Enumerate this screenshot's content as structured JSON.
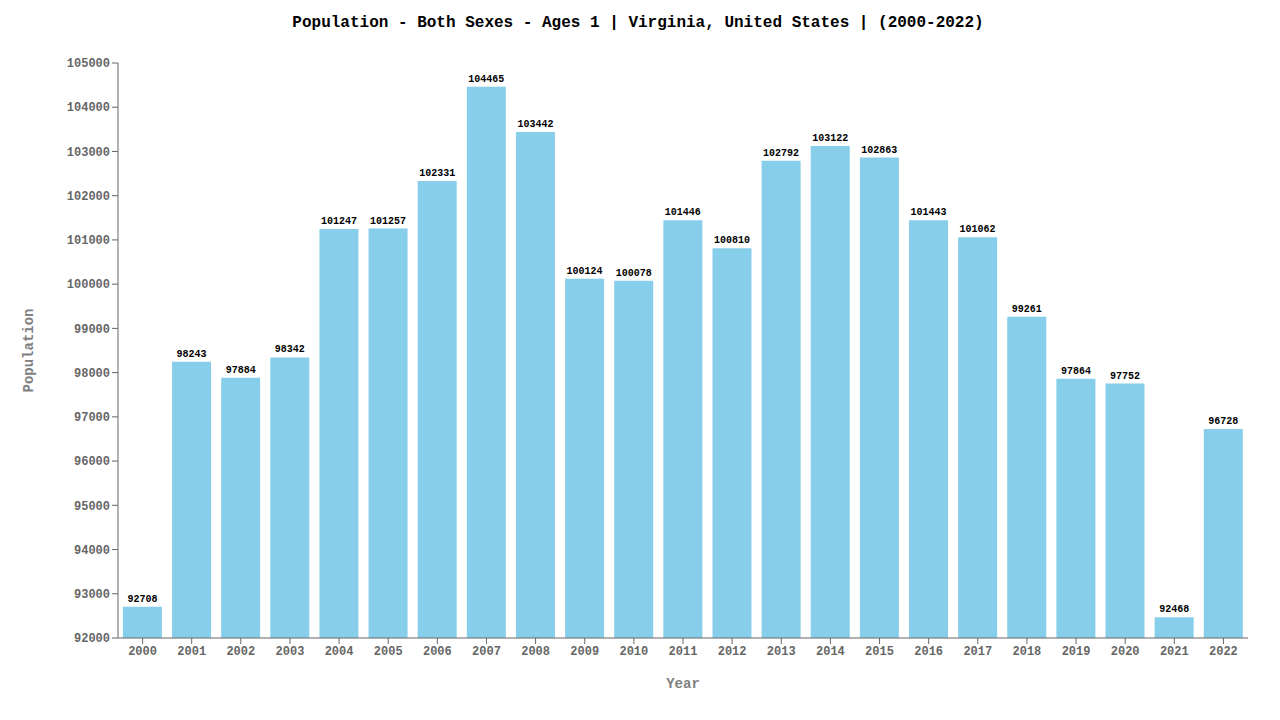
{
  "chart_data": {
    "type": "bar",
    "title": "Population - Both Sexes - Ages 1 | Virginia, United States |  (2000-2022)",
    "x_label": "Year",
    "y_label": "Population",
    "categories": [
      "2000",
      "2001",
      "2002",
      "2003",
      "2004",
      "2005",
      "2006",
      "2007",
      "2008",
      "2009",
      "2010",
      "2011",
      "2012",
      "2013",
      "2014",
      "2015",
      "2016",
      "2017",
      "2018",
      "2019",
      "2020",
      "2021",
      "2022"
    ],
    "values": [
      92708,
      98243,
      97884,
      98342,
      101247,
      101257,
      102331,
      104465,
      103442,
      100124,
      100078,
      101446,
      100810,
      102792,
      103122,
      102863,
      101443,
      101062,
      99261,
      97864,
      97752,
      92468,
      96728
    ],
    "color": "#87CEEB",
    "ylim": [
      92000,
      105000
    ],
    "yticks": [
      92000,
      93000,
      94000,
      95000,
      96000,
      97000,
      98000,
      99000,
      100000,
      101000,
      102000,
      103000,
      104000,
      105000
    ],
    "grid": false,
    "data_labels": true
  }
}
